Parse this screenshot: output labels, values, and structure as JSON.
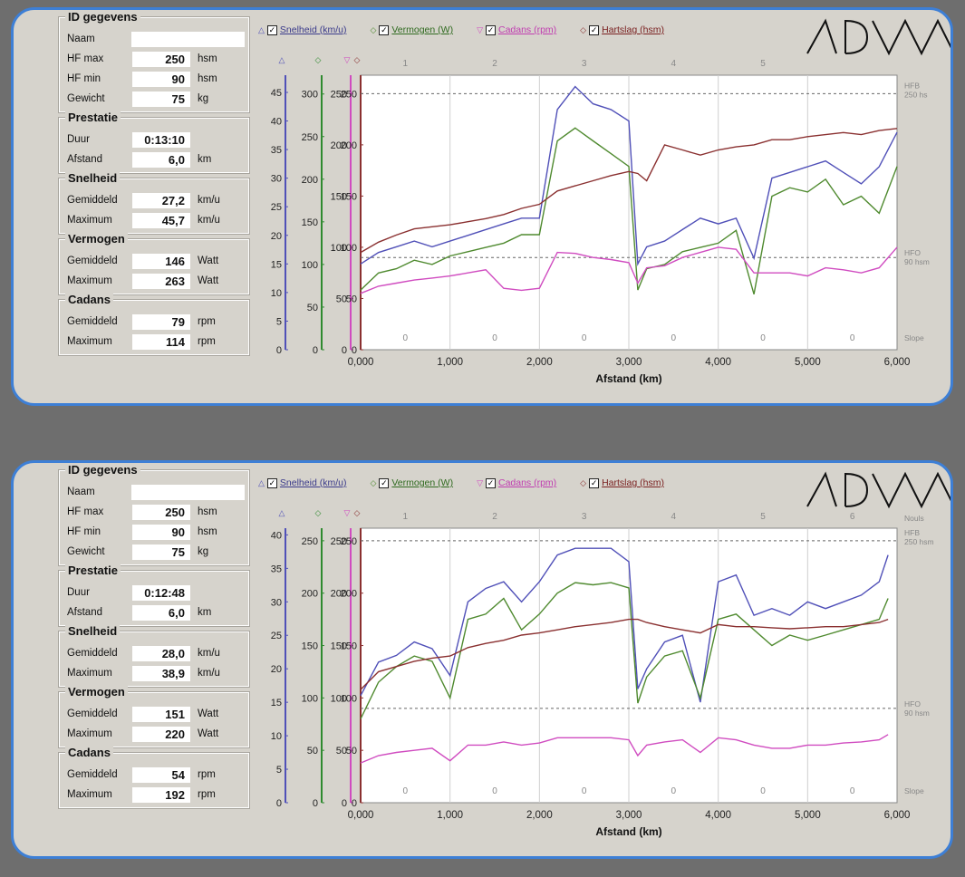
{
  "panels": [
    {
      "id_gegevens": {
        "title": "ID gegevens",
        "naam_label": "Naam",
        "naam_value": "",
        "hf_max_label": "HF max",
        "hf_max": "250",
        "hf_max_unit": "hsm",
        "hf_min_label": "HF min",
        "hf_min": "90",
        "hf_min_unit": "hsm",
        "gewicht_label": "Gewicht",
        "gewicht": "75",
        "gewicht_unit": "kg"
      },
      "prestatie": {
        "title": "Prestatie",
        "duur_label": "Duur",
        "duur": "0:13:10",
        "afstand_label": "Afstand",
        "afstand": "6,0",
        "afstand_unit": "km"
      },
      "snelheid": {
        "title": "Snelheid",
        "gem_label": "Gemiddeld",
        "gem": "27,2",
        "gem_unit": "km/u",
        "max_label": "Maximum",
        "max": "45,7",
        "max_unit": "km/u"
      },
      "vermogen": {
        "title": "Vermogen",
        "gem_label": "Gemiddeld",
        "gem": "146",
        "gem_unit": "Watt",
        "max_label": "Maximum",
        "max": "263",
        "max_unit": "Watt"
      },
      "cadans": {
        "title": "Cadans",
        "gem_label": "Gemiddeld",
        "gem": "79",
        "gem_unit": "rpm",
        "max_label": "Maximum",
        "max": "114",
        "max_unit": "rpm"
      },
      "legend": {
        "snelheid": "Snelheid (km/u)",
        "vermogen": "Vermogen (W)",
        "cadans": "Cadans (rpm)",
        "hartslag": "Hartslag (hsm)"
      },
      "logo": "ADVV",
      "chart": {
        "xlabel": "Afstand (km)",
        "x_ticks": [
          "0,000",
          "1,000",
          "2,000",
          "3,000",
          "4,000",
          "5,000",
          "6,000"
        ],
        "segments": [
          "1",
          "2",
          "3",
          "4",
          "5"
        ],
        "slope_vals": [
          "0",
          "0",
          "0",
          "0",
          "0",
          "0"
        ],
        "hfb_label": "HFB",
        "hfb_val": "250 hs",
        "hfo_label": "HFO",
        "hfo_val": "90 hsm",
        "slope_label": "Slope",
        "speed_axis": {
          "ticks": [
            "0",
            "5",
            "10",
            "15",
            "20",
            "25",
            "30",
            "35",
            "40",
            "45"
          ],
          "max": 48
        },
        "power_axis": {
          "ticks": [
            "0",
            "50",
            "100",
            "150",
            "200",
            "250",
            "300"
          ],
          "max": 322
        },
        "cadence_axis": {
          "ticks": [
            "0",
            "50",
            "100",
            "150",
            "200",
            "250"
          ],
          "max": 268
        },
        "hr_axis": {
          "ticks": [
            "0",
            "50",
            "100",
            "150",
            "200",
            "250"
          ],
          "max": 268
        }
      },
      "chart_data": {
        "type": "line",
        "x": [
          0,
          0.2,
          0.4,
          0.6,
          0.8,
          1.0,
          1.2,
          1.4,
          1.6,
          1.8,
          2.0,
          2.2,
          2.4,
          2.6,
          2.8,
          3.0,
          3.1,
          3.2,
          3.4,
          3.6,
          3.8,
          4.0,
          4.2,
          4.4,
          4.6,
          4.8,
          5.0,
          5.2,
          5.4,
          5.6,
          5.8,
          6.0
        ],
        "series": [
          {
            "name": "Snelheid (km/u)",
            "axis": "speed",
            "color": "#5050b8",
            "values": [
              15,
              17,
              18,
              19,
              18,
              19,
              20,
              21,
              22,
              23,
              23,
              42,
              46,
              43,
              42,
              40,
              15,
              18,
              19,
              21,
              23,
              22,
              23,
              16,
              30,
              31,
              32,
              33,
              31,
              29,
              32,
              38
            ]
          },
          {
            "name": "Vermogen (W)",
            "axis": "power",
            "color": "#4f8a2f",
            "values": [
              70,
              90,
              95,
              105,
              100,
              110,
              115,
              120,
              125,
              135,
              135,
              245,
              260,
              245,
              230,
              215,
              70,
              95,
              100,
              115,
              120,
              125,
              140,
              65,
              180,
              190,
              185,
              200,
              170,
              180,
              160,
              215
            ]
          },
          {
            "name": "Cadans (rpm)",
            "axis": "cadence",
            "color": "#d04cc0",
            "values": [
              55,
              62,
              65,
              68,
              70,
              72,
              75,
              78,
              60,
              58,
              60,
              95,
              94,
              90,
              88,
              85,
              65,
              80,
              82,
              90,
              95,
              100,
              98,
              75,
              75,
              75,
              72,
              80,
              78,
              75,
              80,
              100
            ]
          },
          {
            "name": "Hartslag (hsm)",
            "axis": "hr",
            "color": "#8a3030",
            "values": [
              95,
              105,
              112,
              118,
              120,
              122,
              125,
              128,
              132,
              138,
              142,
              155,
              160,
              165,
              170,
              174,
              172,
              165,
              200,
              195,
              190,
              195,
              198,
              200,
              205,
              205,
              208,
              210,
              212,
              210,
              214,
              216
            ]
          }
        ],
        "hr_limits": {
          "hfb": 250,
          "hfo": 90
        },
        "xlim": [
          0,
          6
        ]
      }
    },
    {
      "id_gegevens": {
        "title": "ID gegevens",
        "naam_label": "Naam",
        "naam_value": "",
        "hf_max_label": "HF max",
        "hf_max": "250",
        "hf_max_unit": "hsm",
        "hf_min_label": "HF min",
        "hf_min": "90",
        "hf_min_unit": "hsm",
        "gewicht_label": "Gewicht",
        "gewicht": "75",
        "gewicht_unit": "kg"
      },
      "prestatie": {
        "title": "Prestatie",
        "duur_label": "Duur",
        "duur": "0:12:48",
        "afstand_label": "Afstand",
        "afstand": "6,0",
        "afstand_unit": "km"
      },
      "snelheid": {
        "title": "Snelheid",
        "gem_label": "Gemiddeld",
        "gem": "28,0",
        "gem_unit": "km/u",
        "max_label": "Maximum",
        "max": "38,9",
        "max_unit": "km/u"
      },
      "vermogen": {
        "title": "Vermogen",
        "gem_label": "Gemiddeld",
        "gem": "151",
        "gem_unit": "Watt",
        "max_label": "Maximum",
        "max": "220",
        "max_unit": "Watt"
      },
      "cadans": {
        "title": "Cadans",
        "gem_label": "Gemiddeld",
        "gem": "54",
        "gem_unit": "rpm",
        "max_label": "Maximum",
        "max": "192",
        "max_unit": "rpm"
      },
      "legend": {
        "snelheid": "Snelheid (km/u)",
        "vermogen": "Vermogen (W)",
        "cadans": "Cadans (rpm)",
        "hartslag": "Hartslag (hsm)"
      },
      "logo": "ADVV",
      "chart": {
        "xlabel": "Afstand (km)",
        "x_ticks": [
          "0,000",
          "1,000",
          "2,000",
          "3,000",
          "4,000",
          "5,000",
          "6,000"
        ],
        "segments": [
          "1",
          "2",
          "3",
          "4",
          "5",
          "6"
        ],
        "slope_vals": [
          "0",
          "0",
          "0",
          "0",
          "0",
          "0"
        ],
        "hfb_label": "HFB",
        "hfb_val": "250 hsm",
        "hfo_label": "HFO",
        "hfo_val": "90 hsm",
        "slope_label": "Slope",
        "extra_label": "Nouls",
        "speed_axis": {
          "ticks": [
            "0",
            "5",
            "10",
            "15",
            "20",
            "25",
            "30",
            "35",
            "40"
          ],
          "max": 41
        },
        "power_axis": {
          "ticks": [
            "0",
            "50",
            "100",
            "150",
            "200",
            "250"
          ],
          "max": 262
        },
        "cadence_axis": {
          "ticks": [
            "0",
            "50",
            "100",
            "150",
            "200",
            "250"
          ],
          "max": 262
        },
        "hr_axis": {
          "ticks": [
            "0",
            "50",
            "100",
            "150",
            "200",
            "250"
          ],
          "max": 262
        }
      },
      "chart_data": {
        "type": "line",
        "x": [
          0,
          0.2,
          0.4,
          0.6,
          0.8,
          1.0,
          1.2,
          1.4,
          1.6,
          1.8,
          2.0,
          2.2,
          2.4,
          2.6,
          2.8,
          3.0,
          3.1,
          3.2,
          3.4,
          3.6,
          3.8,
          4.0,
          4.2,
          4.4,
          4.6,
          4.8,
          5.0,
          5.2,
          5.4,
          5.6,
          5.8,
          5.9
        ],
        "series": [
          {
            "name": "Snelheid (km/u)",
            "axis": "speed",
            "color": "#5050b8",
            "values": [
              16,
              21,
              22,
              24,
              23,
              19,
              30,
              32,
              33,
              30,
              33,
              37,
              38,
              38,
              38,
              36,
              17,
              20,
              24,
              25,
              15,
              33,
              34,
              28,
              29,
              28,
              30,
              29,
              30,
              31,
              33,
              37
            ]
          },
          {
            "name": "Vermogen (W)",
            "axis": "power",
            "color": "#4f8a2f",
            "values": [
              80,
              115,
              130,
              140,
              135,
              100,
              175,
              180,
              195,
              165,
              180,
              200,
              210,
              208,
              210,
              205,
              95,
              120,
              140,
              145,
              100,
              175,
              180,
              165,
              150,
              160,
              155,
              160,
              165,
              170,
              175,
              195
            ]
          },
          {
            "name": "Cadans (rpm)",
            "axis": "cadence",
            "color": "#d04cc0",
            "values": [
              38,
              45,
              48,
              50,
              52,
              40,
              55,
              55,
              58,
              55,
              57,
              62,
              62,
              62,
              62,
              60,
              45,
              55,
              58,
              60,
              48,
              62,
              60,
              55,
              52,
              52,
              55,
              55,
              57,
              58,
              60,
              65
            ]
          },
          {
            "name": "Hartslag (hsm)",
            "axis": "hr",
            "color": "#8a3030",
            "values": [
              108,
              125,
              130,
              135,
              138,
              140,
              148,
              152,
              155,
              160,
              162,
              165,
              168,
              170,
              172,
              175,
              175,
              172,
              168,
              165,
              162,
              170,
              168,
              168,
              167,
              166,
              167,
              168,
              168,
              170,
              172,
              175
            ]
          }
        ],
        "hr_limits": {
          "hfb": 250,
          "hfo": 90
        },
        "xlim": [
          0,
          5.9
        ]
      }
    }
  ]
}
